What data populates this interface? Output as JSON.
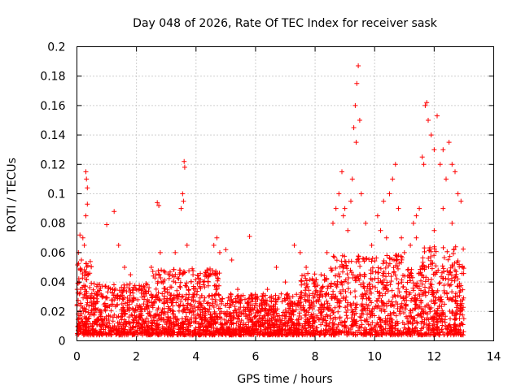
{
  "chart_data": {
    "type": "scatter",
    "title": "Day 048 of 2026, Rate Of TEC Index for receiver sask",
    "xlabel": "GPS time / hours",
    "ylabel": "ROTI / TECUs",
    "xlim": [
      0,
      14
    ],
    "ylim": [
      0,
      0.2
    ],
    "xticks": [
      0,
      2,
      4,
      6,
      8,
      10,
      12,
      14
    ],
    "xtick_labels": [
      "0",
      "2",
      "4",
      "6",
      "8",
      "10",
      "12",
      "14"
    ],
    "yticks": [
      0,
      0.02,
      0.04,
      0.06,
      0.08,
      0.1,
      0.12,
      0.14,
      0.16,
      0.18,
      0.2
    ],
    "ytick_labels": [
      "0",
      "0.02",
      "0.04",
      "0.06",
      "0.08",
      "0.1",
      "0.12",
      "0.14",
      "0.16",
      "0.18",
      "0.2"
    ],
    "grid": true,
    "marker": "+",
    "series_color": "#ff0000",
    "x_data_range": [
      0,
      13
    ],
    "series": [
      {
        "name": "ROTI",
        "points": [
          [
            0.1,
            0.072
          ],
          [
            0.2,
            0.07
          ],
          [
            0.3,
            0.115
          ],
          [
            0.32,
            0.11
          ],
          [
            0.35,
            0.104
          ],
          [
            0.35,
            0.093
          ],
          [
            0.3,
            0.085
          ],
          [
            0.25,
            0.065
          ],
          [
            0.15,
            0.055
          ],
          [
            0.05,
            0.06
          ],
          [
            1.0,
            0.079
          ],
          [
            1.25,
            0.088
          ],
          [
            1.4,
            0.065
          ],
          [
            1.6,
            0.05
          ],
          [
            1.8,
            0.045
          ],
          [
            2.2,
            0.035
          ],
          [
            2.5,
            0.05
          ],
          [
            2.7,
            0.094
          ],
          [
            2.75,
            0.092
          ],
          [
            2.8,
            0.06
          ],
          [
            3.3,
            0.06
          ],
          [
            3.5,
            0.09
          ],
          [
            3.55,
            0.1
          ],
          [
            3.6,
            0.122
          ],
          [
            3.62,
            0.118
          ],
          [
            3.58,
            0.095
          ],
          [
            3.7,
            0.065
          ],
          [
            3.9,
            0.045
          ],
          [
            4.1,
            0.04
          ],
          [
            4.3,
            0.045
          ],
          [
            4.6,
            0.065
          ],
          [
            4.7,
            0.07
          ],
          [
            4.8,
            0.06
          ],
          [
            5.0,
            0.062
          ],
          [
            5.2,
            0.055
          ],
          [
            5.4,
            0.035
          ],
          [
            5.8,
            0.071
          ],
          [
            6.0,
            0.03
          ],
          [
            6.4,
            0.035
          ],
          [
            6.7,
            0.05
          ],
          [
            7.0,
            0.04
          ],
          [
            7.3,
            0.065
          ],
          [
            7.5,
            0.06
          ],
          [
            7.7,
            0.05
          ],
          [
            8.0,
            0.04
          ],
          [
            8.2,
            0.045
          ],
          [
            8.4,
            0.06
          ],
          [
            8.6,
            0.08
          ],
          [
            8.8,
            0.1
          ],
          [
            8.9,
            0.115
          ],
          [
            9.0,
            0.09
          ],
          [
            9.1,
            0.075
          ],
          [
            9.2,
            0.095
          ],
          [
            9.3,
            0.145
          ],
          [
            9.35,
            0.16
          ],
          [
            9.4,
            0.175
          ],
          [
            9.45,
            0.187
          ],
          [
            9.5,
            0.15
          ],
          [
            9.38,
            0.135
          ],
          [
            9.55,
            0.1
          ],
          [
            9.7,
            0.08
          ],
          [
            9.9,
            0.065
          ],
          [
            10.1,
            0.085
          ],
          [
            10.3,
            0.095
          ],
          [
            10.5,
            0.1
          ],
          [
            10.6,
            0.11
          ],
          [
            10.7,
            0.12
          ],
          [
            10.8,
            0.09
          ],
          [
            10.9,
            0.07
          ],
          [
            11.0,
            0.06
          ],
          [
            11.2,
            0.065
          ],
          [
            11.4,
            0.07
          ],
          [
            11.5,
            0.09
          ],
          [
            11.6,
            0.125
          ],
          [
            11.65,
            0.12
          ],
          [
            11.7,
            0.16
          ],
          [
            11.75,
            0.162
          ],
          [
            11.8,
            0.15
          ],
          [
            11.9,
            0.14
          ],
          [
            12.0,
            0.13
          ],
          [
            12.1,
            0.153
          ],
          [
            12.2,
            0.12
          ],
          [
            12.3,
            0.13
          ],
          [
            12.4,
            0.11
          ],
          [
            12.5,
            0.135
          ],
          [
            12.6,
            0.12
          ],
          [
            12.7,
            0.115
          ],
          [
            12.8,
            0.1
          ],
          [
            12.9,
            0.095
          ],
          [
            12.6,
            0.08
          ],
          [
            12.3,
            0.09
          ],
          [
            12.0,
            0.075
          ],
          [
            11.4,
            0.085
          ],
          [
            10.4,
            0.07
          ],
          [
            8.7,
            0.09
          ],
          [
            8.95,
            0.085
          ],
          [
            9.25,
            0.11
          ],
          [
            10.2,
            0.075
          ],
          [
            11.3,
            0.08
          ],
          [
            12.95,
            0.05
          ]
        ]
      }
    ]
  }
}
